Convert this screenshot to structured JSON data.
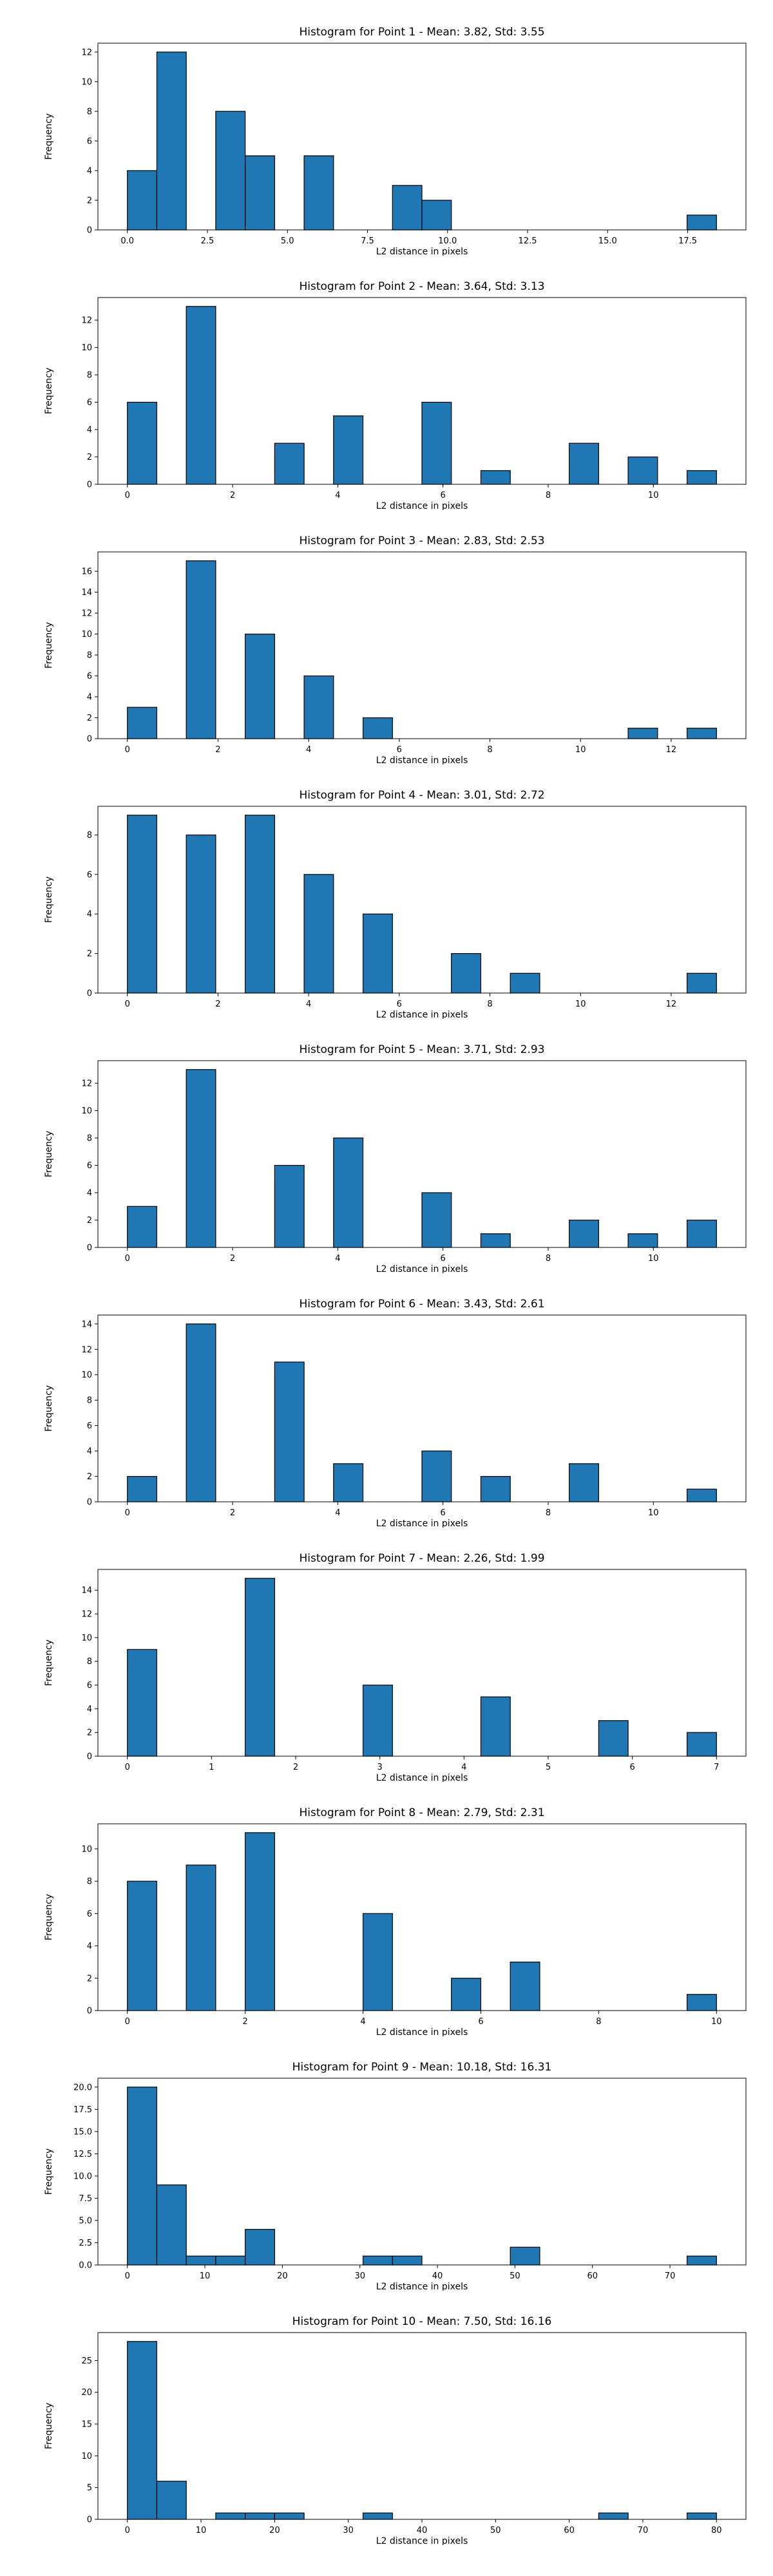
{
  "chart_data": [
    {
      "type": "bar",
      "title": "Histogram for Point 1 - Mean: 3.82, Std: 3.55",
      "xlabel": "L2 distance in pixels",
      "ylabel": "Frequency",
      "xlim": [
        -0.92,
        19.32
      ],
      "ylim": [
        0,
        12.6
      ],
      "xticks": [
        0.0,
        2.5,
        5.0,
        7.5,
        10.0,
        12.5,
        15.0,
        17.5
      ],
      "xtick_labels": [
        "0.0",
        "2.5",
        "5.0",
        "7.5",
        "10.0",
        "12.5",
        "15.0",
        "17.5"
      ],
      "yticks": [
        0,
        2,
        4,
        6,
        8,
        10,
        12
      ],
      "ytick_labels": [
        "0",
        "2",
        "4",
        "6",
        "8",
        "10",
        "12"
      ],
      "bin_edges": [
        0.0,
        0.92,
        1.84,
        2.76,
        3.68,
        4.6,
        5.52,
        6.44,
        7.36,
        8.28,
        9.2,
        10.12,
        11.04,
        11.96,
        12.88,
        13.8,
        14.72,
        15.64,
        16.56,
        17.48,
        18.4
      ],
      "values": [
        4,
        12,
        0,
        8,
        5,
        0,
        5,
        0,
        0,
        3,
        2,
        0,
        0,
        0,
        0,
        0,
        0,
        0,
        0,
        1
      ],
      "grid": false
    },
    {
      "type": "bar",
      "title": "Histogram for Point 2 - Mean: 3.64, Std: 3.13",
      "xlabel": "L2 distance in pixels",
      "ylabel": "Frequency",
      "xlim": [
        -0.56,
        11.76
      ],
      "ylim": [
        0,
        13.65
      ],
      "xticks": [
        0,
        2,
        4,
        6,
        8,
        10
      ],
      "xtick_labels": [
        "0",
        "2",
        "4",
        "6",
        "8",
        "10"
      ],
      "yticks": [
        0,
        2,
        4,
        6,
        8,
        10,
        12
      ],
      "ytick_labels": [
        "0",
        "2",
        "4",
        "6",
        "8",
        "10",
        "12"
      ],
      "bin_edges": [
        0.0,
        0.56,
        1.12,
        1.68,
        2.24,
        2.8,
        3.36,
        3.92,
        4.48,
        5.04,
        5.6,
        6.16,
        6.72,
        7.28,
        7.84,
        8.4,
        8.96,
        9.52,
        10.08,
        10.64,
        11.2
      ],
      "values": [
        6,
        0,
        13,
        0,
        0,
        3,
        0,
        5,
        0,
        0,
        6,
        0,
        1,
        0,
        0,
        3,
        0,
        2,
        0,
        1
      ],
      "grid": false
    },
    {
      "type": "bar",
      "title": "Histogram for Point 3 - Mean: 2.83, Std: 2.53",
      "xlabel": "L2 distance in pixels",
      "ylabel": "Frequency",
      "xlim": [
        -0.65,
        13.65
      ],
      "ylim": [
        0,
        17.85
      ],
      "xticks": [
        0,
        2,
        4,
        6,
        8,
        10,
        12
      ],
      "xtick_labels": [
        "0",
        "2",
        "4",
        "6",
        "8",
        "10",
        "12"
      ],
      "yticks": [
        0,
        2,
        4,
        6,
        8,
        10,
        12,
        14,
        16
      ],
      "ytick_labels": [
        "0",
        "2",
        "4",
        "6",
        "8",
        "10",
        "12",
        "14",
        "16"
      ],
      "bin_edges": [
        0.0,
        0.65,
        1.3,
        1.95,
        2.6,
        3.25,
        3.9,
        4.55,
        5.2,
        5.85,
        6.5,
        7.15,
        7.8,
        8.45,
        9.1,
        9.75,
        10.4,
        11.05,
        11.7,
        12.35,
        13.0
      ],
      "values": [
        3,
        0,
        17,
        0,
        10,
        0,
        6,
        0,
        2,
        0,
        0,
        0,
        0,
        0,
        0,
        0,
        0,
        1,
        0,
        1
      ],
      "grid": false
    },
    {
      "type": "bar",
      "title": "Histogram for Point 4 - Mean: 3.01, Std: 2.72",
      "xlabel": "L2 distance in pixels",
      "ylabel": "Frequency",
      "xlim": [
        -0.65,
        13.65
      ],
      "ylim": [
        0,
        9.45
      ],
      "xticks": [
        0,
        2,
        4,
        6,
        8,
        10,
        12
      ],
      "xtick_labels": [
        "0",
        "2",
        "4",
        "6",
        "8",
        "10",
        "12"
      ],
      "yticks": [
        0,
        2,
        4,
        6,
        8
      ],
      "ytick_labels": [
        "0",
        "2",
        "4",
        "6",
        "8"
      ],
      "bin_edges": [
        0.0,
        0.65,
        1.3,
        1.95,
        2.6,
        3.25,
        3.9,
        4.55,
        5.2,
        5.85,
        6.5,
        7.15,
        7.8,
        8.45,
        9.1,
        9.75,
        10.4,
        11.05,
        11.7,
        12.35,
        13.0
      ],
      "values": [
        9,
        0,
        8,
        0,
        9,
        0,
        6,
        0,
        4,
        0,
        0,
        2,
        0,
        1,
        0,
        0,
        0,
        0,
        0,
        1
      ],
      "grid": false
    },
    {
      "type": "bar",
      "title": "Histogram for Point 5 - Mean: 3.71, Std: 2.93",
      "xlabel": "L2 distance in pixels",
      "ylabel": "Frequency",
      "xlim": [
        -0.56,
        11.76
      ],
      "ylim": [
        0,
        13.65
      ],
      "xticks": [
        0,
        2,
        4,
        6,
        8,
        10
      ],
      "xtick_labels": [
        "0",
        "2",
        "4",
        "6",
        "8",
        "10"
      ],
      "yticks": [
        0,
        2,
        4,
        6,
        8,
        10,
        12
      ],
      "ytick_labels": [
        "0",
        "2",
        "4",
        "6",
        "8",
        "10",
        "12"
      ],
      "bin_edges": [
        0.0,
        0.56,
        1.12,
        1.68,
        2.24,
        2.8,
        3.36,
        3.92,
        4.48,
        5.04,
        5.6,
        6.16,
        6.72,
        7.28,
        7.84,
        8.4,
        8.96,
        9.52,
        10.08,
        10.64,
        11.2
      ],
      "values": [
        3,
        0,
        13,
        0,
        0,
        6,
        0,
        8,
        0,
        0,
        4,
        0,
        1,
        0,
        0,
        2,
        0,
        1,
        0,
        2
      ],
      "grid": false
    },
    {
      "type": "bar",
      "title": "Histogram for Point 6 - Mean: 3.43, Std: 2.61",
      "xlabel": "L2 distance in pixels",
      "ylabel": "Frequency",
      "xlim": [
        -0.56,
        11.76
      ],
      "ylim": [
        0,
        14.7
      ],
      "xticks": [
        0,
        2,
        4,
        6,
        8,
        10
      ],
      "xtick_labels": [
        "0",
        "2",
        "4",
        "6",
        "8",
        "10"
      ],
      "yticks": [
        0,
        2,
        4,
        6,
        8,
        10,
        12,
        14
      ],
      "ytick_labels": [
        "0",
        "2",
        "4",
        "6",
        "8",
        "10",
        "12",
        "14"
      ],
      "bin_edges": [
        0.0,
        0.56,
        1.12,
        1.68,
        2.24,
        2.8,
        3.36,
        3.92,
        4.48,
        5.04,
        5.6,
        6.16,
        6.72,
        7.28,
        7.84,
        8.4,
        8.96,
        9.52,
        10.08,
        10.64,
        11.2
      ],
      "values": [
        2,
        0,
        14,
        0,
        0,
        11,
        0,
        3,
        0,
        0,
        4,
        0,
        2,
        0,
        0,
        3,
        0,
        0,
        0,
        1
      ],
      "grid": false
    },
    {
      "type": "bar",
      "title": "Histogram for Point 7 - Mean: 2.26, Std: 1.99",
      "xlabel": "L2 distance in pixels",
      "ylabel": "Frequency",
      "xlim": [
        -0.35,
        7.35
      ],
      "ylim": [
        0,
        15.75
      ],
      "xticks": [
        0,
        1,
        2,
        3,
        4,
        5,
        6,
        7
      ],
      "xtick_labels": [
        "0",
        "1",
        "2",
        "3",
        "4",
        "5",
        "6",
        "7"
      ],
      "yticks": [
        0,
        2,
        4,
        6,
        8,
        10,
        12,
        14
      ],
      "ytick_labels": [
        "0",
        "2",
        "4",
        "6",
        "8",
        "10",
        "12",
        "14"
      ],
      "bin_edges": [
        0.0,
        0.35,
        0.7,
        1.05,
        1.4,
        1.75,
        2.1,
        2.45,
        2.8,
        3.15,
        3.5,
        3.85,
        4.2,
        4.55,
        4.9,
        5.25,
        5.6,
        5.95,
        6.3,
        6.65,
        7.0
      ],
      "values": [
        9,
        0,
        0,
        0,
        15,
        0,
        0,
        0,
        6,
        0,
        0,
        0,
        5,
        0,
        0,
        0,
        3,
        0,
        0,
        2
      ],
      "grid": false
    },
    {
      "type": "bar",
      "title": "Histogram for Point 8 - Mean: 2.79, Std: 2.31",
      "xlabel": "L2 distance in pixels",
      "ylabel": "Frequency",
      "xlim": [
        -0.5,
        10.5
      ],
      "ylim": [
        0,
        11.55
      ],
      "xticks": [
        0,
        2,
        4,
        6,
        8,
        10
      ],
      "xtick_labels": [
        "0",
        "2",
        "4",
        "6",
        "8",
        "10"
      ],
      "yticks": [
        0,
        2,
        4,
        6,
        8,
        10
      ],
      "ytick_labels": [
        "0",
        "2",
        "4",
        "6",
        "8",
        "10"
      ],
      "bin_edges": [
        0.0,
        0.5,
        1.0,
        1.5,
        2.0,
        2.5,
        3.0,
        3.5,
        4.0,
        4.5,
        5.0,
        5.5,
        6.0,
        6.5,
        7.0,
        7.5,
        8.0,
        8.5,
        9.0,
        9.5,
        10.0
      ],
      "values": [
        8,
        0,
        9,
        0,
        11,
        0,
        0,
        0,
        6,
        0,
        0,
        2,
        0,
        3,
        0,
        0,
        0,
        0,
        0,
        1
      ],
      "grid": false
    },
    {
      "type": "bar",
      "title": "Histogram for Point 9 - Mean: 10.18, Std: 16.31",
      "xlabel": "L2 distance in pixels",
      "ylabel": "Frequency",
      "xlim": [
        -3.8,
        79.8
      ],
      "ylim": [
        0,
        21.0
      ],
      "xticks": [
        0,
        10,
        20,
        30,
        40,
        50,
        60,
        70
      ],
      "xtick_labels": [
        "0",
        "10",
        "20",
        "30",
        "40",
        "50",
        "60",
        "70"
      ],
      "yticks": [
        0.0,
        2.5,
        5.0,
        7.5,
        10.0,
        12.5,
        15.0,
        17.5,
        20.0
      ],
      "ytick_labels": [
        "0.0",
        "2.5",
        "5.0",
        "7.5",
        "10.0",
        "12.5",
        "15.0",
        "17.5",
        "20.0"
      ],
      "bin_edges": [
        0.0,
        3.8,
        7.6,
        11.4,
        15.2,
        19.0,
        22.8,
        26.6,
        30.4,
        34.2,
        38.0,
        41.8,
        45.6,
        49.4,
        53.2,
        57.0,
        60.8,
        64.6,
        68.4,
        72.2,
        76.0
      ],
      "values": [
        20,
        9,
        1,
        1,
        4,
        0,
        0,
        0,
        1,
        1,
        0,
        0,
        0,
        2,
        0,
        0,
        0,
        0,
        0,
        1
      ],
      "grid": false
    },
    {
      "type": "bar",
      "title": "Histogram for Point 10 - Mean: 7.50, Std: 16.16",
      "xlabel": "L2 distance in pixels",
      "ylabel": "Frequency",
      "xlim": [
        -4.0,
        84.0
      ],
      "ylim": [
        0,
        29.4
      ],
      "xticks": [
        0,
        10,
        20,
        30,
        40,
        50,
        60,
        70,
        80
      ],
      "xtick_labels": [
        "0",
        "10",
        "20",
        "30",
        "40",
        "50",
        "60",
        "70",
        "80"
      ],
      "yticks": [
        0,
        5,
        10,
        15,
        20,
        25
      ],
      "ytick_labels": [
        "0",
        "5",
        "10",
        "15",
        "20",
        "25"
      ],
      "bin_edges": [
        0.0,
        4.0,
        8.0,
        12.0,
        16.0,
        20.0,
        24.0,
        28.0,
        32.0,
        36.0,
        40.0,
        44.0,
        48.0,
        52.0,
        56.0,
        60.0,
        64.0,
        68.0,
        72.0,
        76.0,
        80.0
      ],
      "values": [
        28,
        6,
        0,
        1,
        1,
        1,
        0,
        0,
        1,
        0,
        0,
        0,
        0,
        0,
        0,
        0,
        1,
        0,
        0,
        1
      ],
      "grid": false
    }
  ]
}
